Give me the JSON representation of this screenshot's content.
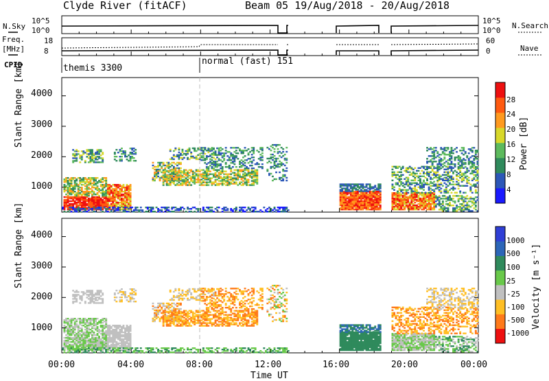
{
  "header": {
    "radar": "Clyde River (fitACF)",
    "beam_and_dates": "Beam 05  19/Aug/2018 - 20/Aug/2018"
  },
  "top_panels": {
    "nsky_label": "N.Sky",
    "nsky_ticks": [
      "10^5",
      "10^0"
    ],
    "nsearch_label": "N.Search",
    "nsearch_ticks": [
      "10^5",
      "10^0"
    ],
    "freq_label_1": "Freq.",
    "freq_label_2": "[MHz]",
    "freq_ticks": [
      "18",
      "8"
    ],
    "nave_label": "Nave",
    "nave_ticks": [
      "60",
      "0"
    ],
    "cpid_label": "CPID",
    "cpid_entries": [
      "themis 3300",
      "normal (fast) 151"
    ]
  },
  "time_axis": {
    "label": "Time UT",
    "ticks": [
      "00:00",
      "04:00",
      "08:00",
      "12:00",
      "16:00",
      "20:00",
      "00:00"
    ]
  },
  "chart_data": [
    {
      "type": "heatmap",
      "panel": "power",
      "ylabel": "Slant Range [km]",
      "ylim": [
        180,
        4600
      ],
      "yticks": [
        "1000",
        "2000",
        "3000",
        "4000"
      ],
      "xlim_hours": [
        0,
        24
      ],
      "data_gaps_hours": [
        [
          13.1,
          16.0
        ],
        [
          18.4,
          19.0
        ]
      ],
      "colorbar_label": "Power [dB]",
      "colorbar_ticks": [
        "4",
        "8",
        "12",
        "16",
        "20",
        "24",
        "28"
      ],
      "colorbar_range": [
        0,
        32
      ],
      "colors": [
        "#1a1aff",
        "#2c57b8",
        "#2f8a5c",
        "#5dba5d",
        "#d8d82a",
        "#ff9a1f",
        "#ff5a10",
        "#ee1010"
      ]
    },
    {
      "type": "heatmap",
      "panel": "velocity",
      "ylabel": "Slant Range [km]",
      "ylim": [
        180,
        4600
      ],
      "yticks": [
        "1000",
        "2000",
        "3000",
        "4000"
      ],
      "xlim_hours": [
        0,
        24
      ],
      "data_gaps_hours": [
        [
          13.1,
          16.0
        ],
        [
          18.4,
          19.0
        ]
      ],
      "colorbar_label": "Velocity [m s⁻¹]",
      "colorbar_ticks": [
        "1000",
        "500",
        "100",
        "25",
        "-25",
        "-100",
        "-500",
        "-1000"
      ],
      "colors": [
        "#2f3fd6",
        "#2c66b8",
        "#2f8a5c",
        "#69c94a",
        "#c0c0c0",
        "#ffbf24",
        "#ff7a1a",
        "#ee1010"
      ]
    }
  ]
}
